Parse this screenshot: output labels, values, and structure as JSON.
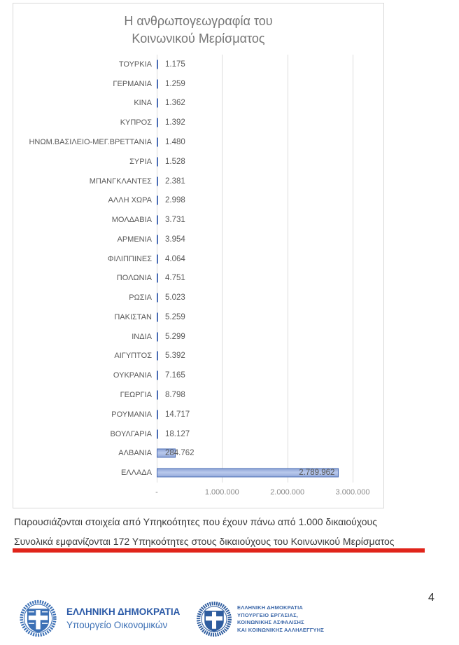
{
  "chart_data": {
    "type": "bar",
    "orientation": "horizontal",
    "title": "Η ανθρωπογεωγραφία του Κοινωνικού Μερίσματος",
    "title_lines": [
      "Η ανθρωπογεωγραφία του",
      "Κοινωνικού Μερίσματος"
    ],
    "categories": [
      "ΤΟΥΡΚΙΑ",
      "ΓΕΡΜΑΝΙΑ",
      "ΚΙΝΑ",
      "ΚΥΠΡΟΣ",
      "ΗΝΩΜ.ΒΑΣΙΛΕΙΟ-ΜΕΓ.ΒΡΕΤΤΑΝΙΑ",
      "ΣΥΡΙΑ",
      "ΜΠΑΝΓΚΛΑΝΤΕΣ",
      "ΑΛΛΗ ΧΩΡΑ",
      "ΜΟΛΔΑΒΙΑ",
      "ΑΡΜΕΝΙΑ",
      "ΦΙΛΙΠΠΙΝΕΣ",
      "ΠΟΛΩΝΙΑ",
      "ΡΩΣΙΑ",
      "ΠΑΚΙΣΤΑΝ",
      "ΙΝΔΙΑ",
      "ΑΙΓΥΠΤΟΣ",
      "ΟΥΚΡΑΝΙΑ",
      "ΓΕΩΡΓΙΑ",
      "ΡΟΥΜΑΝΙΑ",
      "ΒΟΥΛΓΑΡΙΑ",
      "ΑΛΒΑΝΙΑ",
      "ΕΛΛΑΔΑ"
    ],
    "values": [
      1175,
      1259,
      1362,
      1392,
      1480,
      1528,
      2381,
      2998,
      3731,
      3954,
      4064,
      4751,
      5023,
      5259,
      5299,
      5392,
      7165,
      8798,
      14717,
      18127,
      284762,
      2789962
    ],
    "value_labels": [
      "1.175",
      "1.259",
      "1.362",
      "1.392",
      "1.480",
      "1.528",
      "2.381",
      "2.998",
      "3.731",
      "3.954",
      "4.064",
      "4.751",
      "5.023",
      "5.259",
      "5.299",
      "5.392",
      "7.165",
      "8.798",
      "14.717",
      "18.127",
      "284.762",
      "2.789.962"
    ],
    "inside_label_category": "ΕΛΛΑΔΑ",
    "xlim": [
      0,
      3000000
    ],
    "x_ticks": [
      0,
      1000000,
      2000000,
      3000000
    ],
    "x_tick_labels": [
      "-",
      "1.000.000",
      "2.000.000",
      "3.000.000"
    ],
    "grid": true,
    "legend": "none",
    "bar_fill": "#a8bce4",
    "bar_border": "#4a6db5"
  },
  "notes": {
    "line1": "Παρουσιάζονται στοιχεία από Υπηκοότητες που έχουν πάνω από 1.000 δικαιούχους",
    "line2": "Συνολικά εμφανίζονται 172 Υπηκοότητες στους δικαιούχους του Κοινωνικού Μερίσματος",
    "underline_color": "#e0241a"
  },
  "footer": {
    "left_logo": {
      "emblem": "greek-coat-of-arms",
      "title": "ΕΛΛΗΝΙΚΗ ΔΗΜΟΚΡΑΤΙΑ",
      "subtitle": "Υπουργείο Οικονομικών"
    },
    "right_logo": {
      "emblem": "greek-coat-of-arms",
      "lines": [
        "ΕΛΛΗΝΙΚΗ ΔΗΜΟΚΡΑΤΙΑ",
        "ΥΠΟΥΡΓΕΙΟ ΕΡΓΑΣΙΑΣ,",
        "ΚΟΙΝΩΝΙΚΗΣ ΑΣΦΑΛΙΣΗΣ",
        "ΚΑΙ ΚΟΙΝΩΝΙΚΗΣ ΑΛΛΗΛΕΓΓΥΗΣ"
      ]
    },
    "page_number": "4"
  },
  "colors": {
    "title_gray": "#767676",
    "label_gray": "#595959",
    "logo_blue": "#2b5aa7"
  }
}
